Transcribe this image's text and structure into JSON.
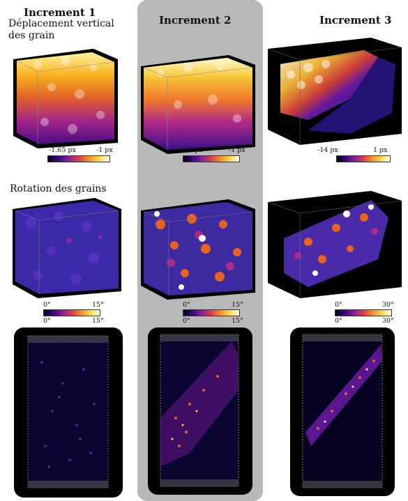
{
  "columns": [
    {
      "title": "Increment 1"
    },
    {
      "title": "Increment 2"
    },
    {
      "title": "Increment 3"
    }
  ],
  "sections": {
    "displacement": "Déplacement vertical des grain",
    "rotation": "Rotation des grains"
  },
  "displacement_colorbars": [
    {
      "min": "-1.65 px",
      "max": "-1 px"
    },
    {
      "min": "-8.5 px",
      "max": "-1 px"
    },
    {
      "min": "-14 px",
      "max": "1 px"
    }
  ],
  "rotation_colorbars": [
    {
      "min": "0°",
      "max": "15°"
    },
    {
      "min": "0°",
      "max": "15°"
    },
    {
      "min": "0°",
      "max": "30°"
    }
  ],
  "colors": {
    "highlight": "#b8b8b8",
    "cube_background": "#000000"
  }
}
